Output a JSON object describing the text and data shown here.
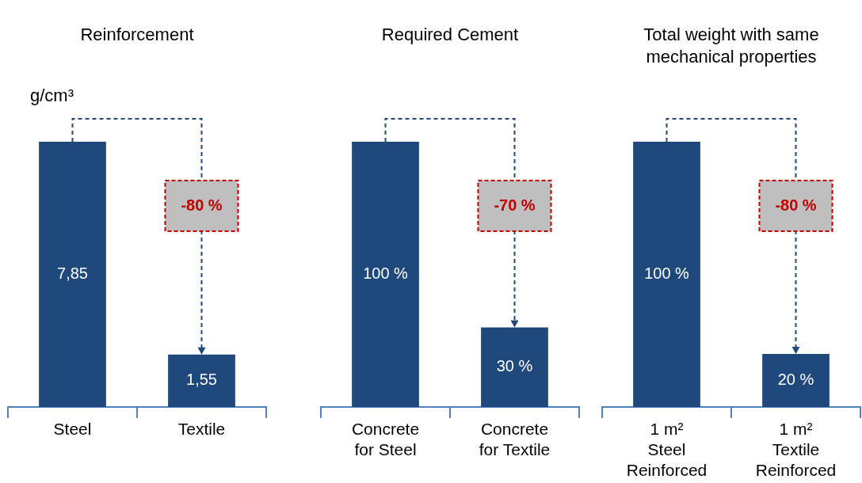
{
  "chart_data": [
    {
      "type": "bar",
      "title": "Reinforcement",
      "ylabel": "g/cm³",
      "categories": [
        "Steel",
        "Textile"
      ],
      "values": [
        7.85,
        1.55
      ],
      "value_labels": [
        "7,85",
        "1,55"
      ],
      "color": "#1f497d",
      "annotations": [
        "-80 %"
      ]
    },
    {
      "type": "bar",
      "title": "Required Cement",
      "categories": [
        "Concrete\nfor Steel",
        "Concrete\nfor Textile"
      ],
      "values": [
        100,
        30
      ],
      "value_labels": [
        "100 %",
        "30 %"
      ],
      "color": "#1f497d",
      "annotations": [
        "-70 %"
      ]
    },
    {
      "type": "bar",
      "title": "Total weight with same mechanical properties",
      "categories": [
        "1 m²\nSteel\nReinforced",
        "1 m²\nTextile\nReinforced"
      ],
      "values": [
        100,
        20
      ],
      "value_labels": [
        "100 %",
        "20 %"
      ],
      "color": "#1f497d",
      "annotations": [
        "-80 %"
      ]
    }
  ]
}
